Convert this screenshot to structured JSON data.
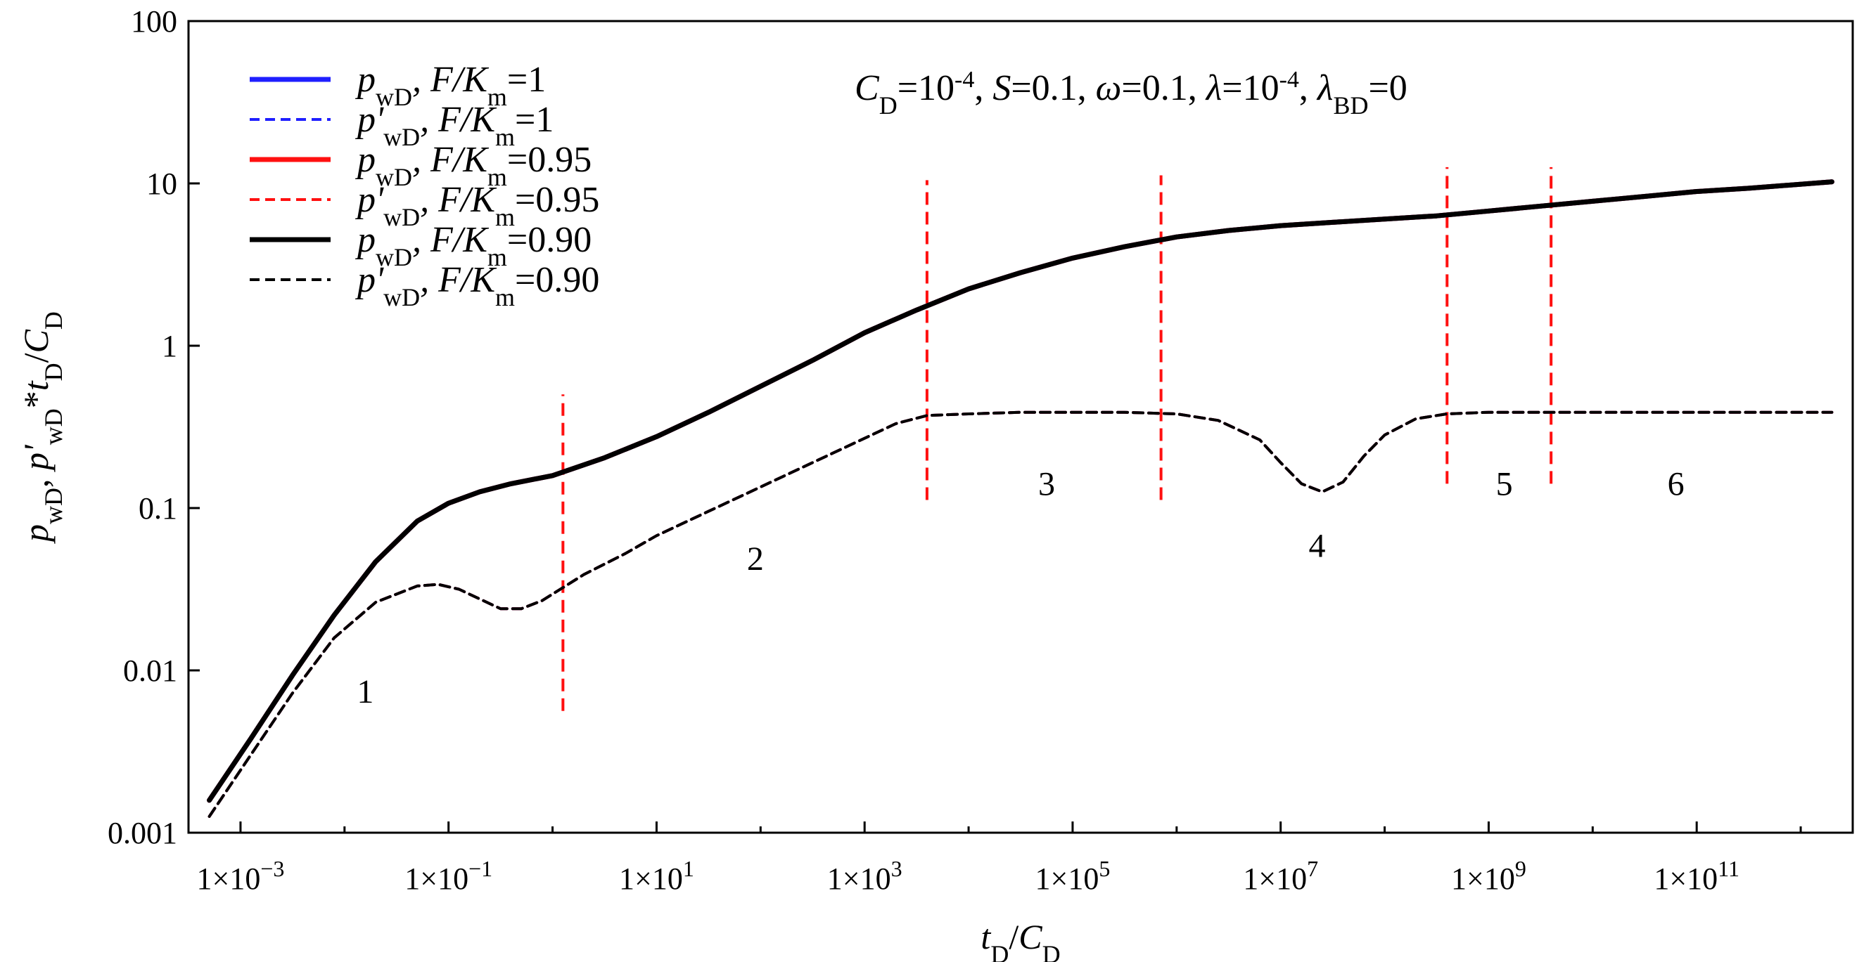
{
  "chart_data": {
    "type": "line",
    "scale": {
      "x": "log",
      "y": "log"
    },
    "xlim_log10": [
      -3.5,
      12.5
    ],
    "ylim_log10": [
      -3,
      2
    ],
    "xlabel": {
      "main": "t",
      "sub1": "D",
      "slash": "/",
      "main2": "C",
      "sub2": "D"
    },
    "ylabel": {
      "p": "p",
      "wD": "wD",
      "comma": ", ",
      "pprime": "p'",
      "wD2": "wD",
      "star": "*",
      "t": "t",
      "D": "D",
      "slash": "/",
      "C": "C",
      "D2": "D"
    },
    "x_ticks": [
      {
        "log": -3,
        "base": "1×10",
        "exp": "−3"
      },
      {
        "log": -1,
        "base": "1×10",
        "exp": "−1"
      },
      {
        "log": 1,
        "base": "1×10",
        "exp": "1"
      },
      {
        "log": 3,
        "base": "1×10",
        "exp": "3"
      },
      {
        "log": 5,
        "base": "1×10",
        "exp": "5"
      },
      {
        "log": 7,
        "base": "1×10",
        "exp": "7"
      },
      {
        "log": 9,
        "base": "1×10",
        "exp": "9"
      },
      {
        "log": 11,
        "base": "1×10",
        "exp": "11"
      }
    ],
    "y_ticks": [
      {
        "log": -3,
        "label": "0.001"
      },
      {
        "log": -2,
        "label": "0.01"
      },
      {
        "log": -1,
        "label": "0.1"
      },
      {
        "log": 0,
        "label": "1"
      },
      {
        "log": 1,
        "label": "10"
      },
      {
        "log": 2,
        "label": "100"
      }
    ],
    "parameters": {
      "CD_name": "C",
      "CD_sub": "D",
      "CD_eq": "=10",
      "CD_exp": "-4",
      "S_sep": ", ",
      "S_name": "S",
      "S_eq": "=0.1",
      "w_sep": ", ",
      "w_name": "ω",
      "w_eq": "=0.1",
      "l_sep": ", ",
      "l_name": "λ",
      "l_eq": "=10",
      "l_exp": "-4",
      "lbd_sep": ", ",
      "lbd_name": "λ",
      "lbd_sub": "BD",
      "lbd_eq": "=0"
    },
    "legend_items": [
      {
        "sym": "p",
        "sub": "wD",
        "mid": ", F/K",
        "msub": "m",
        "val": "=1",
        "color": "#1f1fff",
        "dash": false
      },
      {
        "sym": "p'",
        "sub": "wD",
        "mid": ", F/K",
        "msub": "m",
        "val": "=1",
        "color": "#1f1fff",
        "dash": true
      },
      {
        "sym": "p",
        "sub": "wD",
        "mid": ", F/K",
        "msub": "m",
        "val": "=0.95",
        "color": "#ff1010",
        "dash": false
      },
      {
        "sym": "p'",
        "sub": "wD",
        "mid": ", F/K",
        "msub": "m",
        "val": "=0.95",
        "color": "#ff1010",
        "dash": true
      },
      {
        "sym": "p",
        "sub": "wD",
        "mid": ", F/K",
        "msub": "m",
        "val": "=0.90",
        "color": "#000000",
        "dash": false
      },
      {
        "sym": "p'",
        "sub": "wD",
        "mid": ", F/K",
        "msub": "m",
        "val": "=0.90",
        "color": "#000000",
        "dash": true
      }
    ],
    "series": [
      {
        "name": "pwD, F/Km=1",
        "color": "#1f1fff",
        "dash": false,
        "x_log10": [
          -3.3,
          -2.9,
          -2.5,
          -2.1,
          -1.7,
          -1.3,
          -1.0,
          -0.7,
          -0.4,
          0.0,
          0.5,
          1.0,
          1.5,
          2.0,
          2.5,
          3.0,
          3.5,
          4.0,
          4.5,
          5.0,
          5.5,
          6.0,
          6.5,
          7.0,
          7.5,
          8.0,
          8.5,
          9.0,
          9.5,
          10.0,
          10.5,
          11.0,
          11.5,
          12.3
        ],
        "y_log10": [
          -2.8,
          -2.42,
          -2.03,
          -1.66,
          -1.33,
          -1.08,
          -0.97,
          -0.9,
          -0.85,
          -0.8,
          -0.69,
          -0.56,
          -0.41,
          -0.25,
          -0.09,
          0.08,
          0.22,
          0.35,
          0.45,
          0.54,
          0.61,
          0.67,
          0.71,
          0.74,
          0.76,
          0.78,
          0.8,
          0.83,
          0.86,
          0.89,
          0.92,
          0.95,
          0.97,
          1.01
        ]
      },
      {
        "name": "p'wD*tD/CD, F/Km=1",
        "color": "#1f1fff",
        "dash": true,
        "x_log10": [
          -3.3,
          -2.9,
          -2.5,
          -2.1,
          -1.7,
          -1.3,
          -1.1,
          -0.9,
          -0.7,
          -0.5,
          -0.3,
          -0.1,
          0.0,
          0.3,
          0.7,
          1.0,
          1.5,
          2.0,
          2.5,
          3.0,
          3.3,
          3.6,
          4.0,
          4.5,
          5.0,
          5.5,
          6.0,
          6.4,
          6.8,
          7.0,
          7.2,
          7.4,
          7.6,
          7.8,
          8.0,
          8.3,
          8.6,
          9.0,
          10.0,
          11.0,
          12.3
        ],
        "y_log10": [
          -2.9,
          -2.52,
          -2.14,
          -1.8,
          -1.58,
          -1.48,
          -1.47,
          -1.5,
          -1.56,
          -1.62,
          -1.62,
          -1.57,
          -1.53,
          -1.41,
          -1.28,
          -1.17,
          -1.02,
          -0.87,
          -0.72,
          -0.57,
          -0.48,
          -0.43,
          -0.42,
          -0.41,
          -0.41,
          -0.41,
          -0.42,
          -0.46,
          -0.58,
          -0.72,
          -0.85,
          -0.9,
          -0.84,
          -0.68,
          -0.55,
          -0.45,
          -0.42,
          -0.41,
          -0.41,
          -0.41,
          -0.41
        ]
      },
      {
        "name": "pwD, F/Km=0.95",
        "color": "#ff1010",
        "dash": false,
        "x_log10": [
          -3.3,
          -2.9,
          -2.5,
          -2.1,
          -1.7,
          -1.3,
          -1.0,
          -0.7,
          -0.4,
          0.0,
          0.5,
          1.0,
          1.5,
          2.0,
          2.5,
          3.0,
          3.5,
          4.0,
          4.5,
          5.0,
          5.5,
          6.0,
          6.5,
          7.0,
          7.5,
          8.0,
          8.5,
          9.0,
          9.5,
          10.0,
          10.5,
          11.0,
          11.5,
          12.3
        ],
        "y_log10": [
          -2.8,
          -2.42,
          -2.03,
          -1.66,
          -1.33,
          -1.08,
          -0.97,
          -0.9,
          -0.85,
          -0.8,
          -0.69,
          -0.56,
          -0.41,
          -0.25,
          -0.09,
          0.08,
          0.22,
          0.35,
          0.45,
          0.54,
          0.61,
          0.67,
          0.71,
          0.74,
          0.76,
          0.78,
          0.8,
          0.83,
          0.86,
          0.89,
          0.92,
          0.95,
          0.97,
          1.01
        ]
      },
      {
        "name": "p'wD*tD/CD, F/Km=0.95",
        "color": "#ff1010",
        "dash": true,
        "x_log10": [
          -3.3,
          -2.9,
          -2.5,
          -2.1,
          -1.7,
          -1.3,
          -1.1,
          -0.9,
          -0.7,
          -0.5,
          -0.3,
          -0.1,
          0.0,
          0.3,
          0.7,
          1.0,
          1.5,
          2.0,
          2.5,
          3.0,
          3.3,
          3.6,
          4.0,
          4.5,
          5.0,
          5.5,
          6.0,
          6.4,
          6.8,
          7.0,
          7.2,
          7.4,
          7.6,
          7.8,
          8.0,
          8.3,
          8.6,
          9.0,
          10.0,
          11.0,
          12.3
        ],
        "y_log10": [
          -2.9,
          -2.52,
          -2.14,
          -1.8,
          -1.58,
          -1.48,
          -1.47,
          -1.5,
          -1.56,
          -1.62,
          -1.62,
          -1.57,
          -1.53,
          -1.41,
          -1.28,
          -1.17,
          -1.02,
          -0.87,
          -0.72,
          -0.57,
          -0.48,
          -0.43,
          -0.42,
          -0.41,
          -0.41,
          -0.41,
          -0.42,
          -0.46,
          -0.58,
          -0.72,
          -0.85,
          -0.9,
          -0.84,
          -0.68,
          -0.55,
          -0.45,
          -0.42,
          -0.41,
          -0.41,
          -0.41,
          -0.41
        ]
      },
      {
        "name": "pwD, F/Km=0.90",
        "color": "#000000",
        "dash": false,
        "x_log10": [
          -3.3,
          -2.9,
          -2.5,
          -2.1,
          -1.7,
          -1.3,
          -1.0,
          -0.7,
          -0.4,
          0.0,
          0.5,
          1.0,
          1.5,
          2.0,
          2.5,
          3.0,
          3.5,
          4.0,
          4.5,
          5.0,
          5.5,
          6.0,
          6.5,
          7.0,
          7.5,
          8.0,
          8.5,
          9.0,
          9.5,
          10.0,
          10.5,
          11.0,
          11.5,
          12.3
        ],
        "y_log10": [
          -2.8,
          -2.42,
          -2.03,
          -1.66,
          -1.33,
          -1.08,
          -0.97,
          -0.9,
          -0.85,
          -0.8,
          -0.69,
          -0.56,
          -0.41,
          -0.25,
          -0.09,
          0.08,
          0.22,
          0.35,
          0.45,
          0.54,
          0.61,
          0.67,
          0.71,
          0.74,
          0.76,
          0.78,
          0.8,
          0.83,
          0.86,
          0.89,
          0.92,
          0.95,
          0.97,
          1.01
        ]
      },
      {
        "name": "p'wD*tD/CD, F/Km=0.90",
        "color": "#000000",
        "dash": true,
        "x_log10": [
          -3.3,
          -2.9,
          -2.5,
          -2.1,
          -1.7,
          -1.3,
          -1.1,
          -0.9,
          -0.7,
          -0.5,
          -0.3,
          -0.1,
          0.0,
          0.3,
          0.7,
          1.0,
          1.5,
          2.0,
          2.5,
          3.0,
          3.3,
          3.6,
          4.0,
          4.5,
          5.0,
          5.5,
          6.0,
          6.4,
          6.8,
          7.0,
          7.2,
          7.4,
          7.6,
          7.8,
          8.0,
          8.3,
          8.6,
          9.0,
          10.0,
          11.0,
          12.3
        ],
        "y_log10": [
          -2.9,
          -2.52,
          -2.14,
          -1.8,
          -1.58,
          -1.48,
          -1.47,
          -1.5,
          -1.56,
          -1.62,
          -1.62,
          -1.57,
          -1.53,
          -1.41,
          -1.28,
          -1.17,
          -1.02,
          -0.87,
          -0.72,
          -0.57,
          -0.48,
          -0.43,
          -0.42,
          -0.41,
          -0.41,
          -0.41,
          -0.42,
          -0.46,
          -0.58,
          -0.72,
          -0.85,
          -0.9,
          -0.84,
          -0.68,
          -0.55,
          -0.45,
          -0.42,
          -0.41,
          -0.41,
          -0.41,
          -0.41
        ]
      }
    ],
    "flow_boundaries": [
      {
        "x_log10": 0.1,
        "y_log10": [
          -2.25,
          -0.3
        ]
      },
      {
        "x_log10": 3.6,
        "y_log10": [
          -0.95,
          1.02
        ]
      },
      {
        "x_log10": 5.85,
        "y_log10": [
          -0.95,
          1.05
        ]
      },
      {
        "x_log10": 8.6,
        "y_log10": [
          -0.85,
          1.1
        ]
      },
      {
        "x_log10": 9.6,
        "y_log10": [
          -0.85,
          1.1
        ]
      }
    ],
    "regions": [
      {
        "label": "1",
        "x_log10": -1.8,
        "y_log10": -2.2
      },
      {
        "label": "2",
        "x_log10": 1.95,
        "y_log10": -1.38
      },
      {
        "label": "3",
        "x_log10": 4.75,
        "y_log10": -0.92
      },
      {
        "label": "4",
        "x_log10": 7.35,
        "y_log10": -1.3
      },
      {
        "label": "5",
        "x_log10": 9.15,
        "y_log10": -0.92
      },
      {
        "label": "6",
        "x_log10": 10.8,
        "y_log10": -0.92
      }
    ]
  }
}
